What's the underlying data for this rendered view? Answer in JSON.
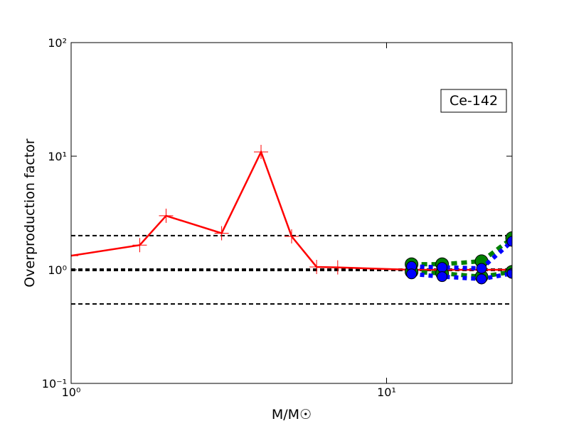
{
  "chart_data": {
    "type": "line",
    "annotation": "Ce-142",
    "xlabel": "M/M☉",
    "ylabel": "Overproduction factor",
    "xscale": "log",
    "yscale": "log",
    "xlim": [
      1,
      25
    ],
    "ylim": [
      0.1,
      100
    ],
    "xticks": [
      {
        "value": 1,
        "label": "10⁰"
      },
      {
        "value": 10,
        "label": "10¹"
      }
    ],
    "yticks": [
      {
        "value": 0.1,
        "label": "10⁻¹"
      },
      {
        "value": 1,
        "label": "10⁰"
      },
      {
        "value": 10,
        "label": "10¹"
      },
      {
        "value": 100,
        "label": "10²"
      }
    ],
    "hlines": [
      0.5,
      1,
      2
    ],
    "series": [
      {
        "color": "#ff0000",
        "style": "solid",
        "marker": "plus",
        "x": [
          1,
          1.65,
          2,
          3,
          4,
          5,
          6,
          7,
          12,
          15,
          20,
          25
        ],
        "values": [
          1.33,
          1.65,
          2.99,
          2.1,
          10.9,
          1.97,
          1.06,
          1.05,
          1.0,
          1.0,
          1.0,
          1.0
        ]
      },
      {
        "color": "#008000",
        "style": "dashed",
        "marker": "circle",
        "x": [
          12,
          15,
          20,
          25
        ],
        "values": [
          1.12,
          1.12,
          1.19,
          1.9
        ]
      },
      {
        "color": "#008000",
        "style": "dashed",
        "marker": "circle",
        "x": [
          12,
          15,
          20,
          25
        ],
        "values": [
          0.96,
          0.93,
          0.87,
          0.96
        ]
      },
      {
        "color": "#0000ff",
        "style": "dotted",
        "marker": "circle",
        "x": [
          12,
          15,
          20,
          25
        ],
        "values": [
          1.07,
          1.05,
          1.03,
          1.78
        ]
      },
      {
        "color": "#0000ff",
        "style": "dotted",
        "marker": "circle",
        "x": [
          12,
          15,
          20,
          25
        ],
        "values": [
          0.92,
          0.87,
          0.83,
          0.93
        ]
      }
    ]
  }
}
